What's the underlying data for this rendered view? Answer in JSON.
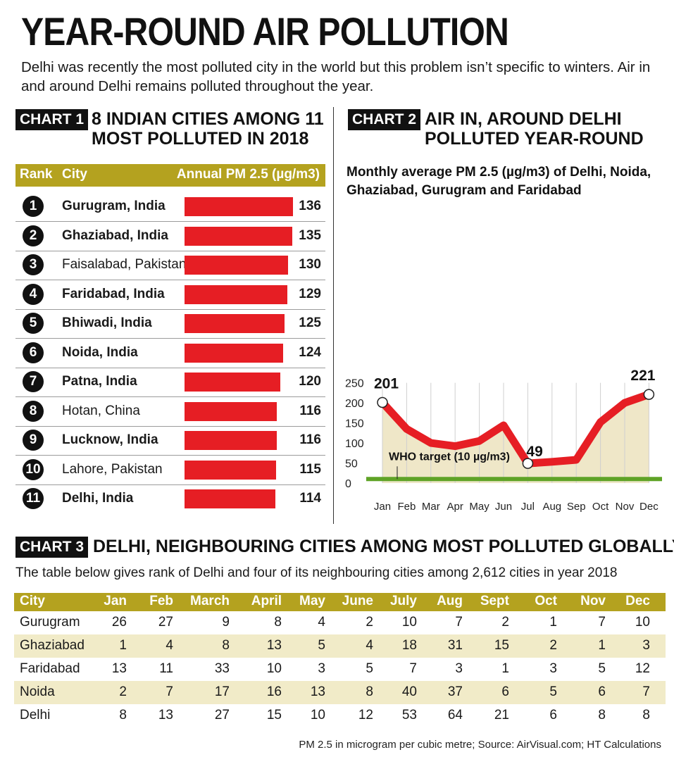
{
  "title": "YEAR-ROUND AIR POLLUTION",
  "intro": "Delhi was recently the most polluted city in the world but this problem isn’t specific to winters. Air in and around Delhi remains polluted throughout the year.",
  "chart1": {
    "badge": "CHART 1",
    "heading_line1": "8 INDIAN CITIES AMONG 11",
    "heading_line2": "MOST POLLUTED IN 2018",
    "header_rank": "Rank",
    "header_city": "City",
    "header_value": "Annual PM 2.5 (µg/m3)",
    "rows": [
      {
        "rank": "1",
        "city": "Gurugram, India",
        "value": "136",
        "indian": true
      },
      {
        "rank": "2",
        "city": "Ghaziabad, India",
        "value": "135",
        "indian": true
      },
      {
        "rank": "3",
        "city": "Faisalabad, Pakistan",
        "value": "130",
        "indian": false
      },
      {
        "rank": "4",
        "city": "Faridabad, India",
        "value": "129",
        "indian": true
      },
      {
        "rank": "5",
        "city": "Bhiwadi, India",
        "value": "125",
        "indian": true
      },
      {
        "rank": "6",
        "city": "Noida, India",
        "value": "124",
        "indian": true
      },
      {
        "rank": "7",
        "city": "Patna, India",
        "value": "120",
        "indian": true
      },
      {
        "rank": "8",
        "city": "Hotan, China",
        "value": "116",
        "indian": false
      },
      {
        "rank": "9",
        "city": "Lucknow, India",
        "value": "116",
        "indian": true
      },
      {
        "rank": "10",
        "city": "Lahore, Pakistan",
        "value": "115",
        "indian": false
      },
      {
        "rank": "11",
        "city": "Delhi, India",
        "value": "114",
        "indian": true
      }
    ]
  },
  "chart2": {
    "badge": "CHART 2",
    "heading_line1": "AIR IN, AROUND DELHI",
    "heading_line2": "POLLUTED YEAR-ROUND",
    "subtitle": "Monthly average PM 2.5 (µg/m3) of Delhi, Noida, Ghaziabad, Gurugram and Faridabad",
    "who_label": "WHO target (10 µg/m3)",
    "who_value": 10,
    "labels": {
      "jan": "201",
      "jul": "49",
      "dec": "221"
    }
  },
  "chart_data": [
    {
      "type": "bar",
      "title": "8 INDIAN CITIES AMONG 11 MOST POLLUTED IN 2018",
      "categories": [
        "Gurugram, India",
        "Ghaziabad, India",
        "Faisalabad, Pakistan",
        "Faridabad, India",
        "Bhiwadi, India",
        "Noida, India",
        "Patna, India",
        "Hotan, China",
        "Lucknow, India",
        "Lahore, Pakistan",
        "Delhi, India"
      ],
      "values": [
        136,
        135,
        130,
        129,
        125,
        124,
        120,
        116,
        116,
        115,
        114
      ],
      "xlabel": "Annual PM 2.5 (µg/m3)",
      "orientation": "horizontal"
    },
    {
      "type": "area",
      "title": "Monthly average PM 2.5 (µg/m3) of Delhi, Noida, Ghaziabad, Gurugram and Faridabad",
      "x": [
        "Jan",
        "Feb",
        "Mar",
        "Apr",
        "May",
        "Jun",
        "Jul",
        "Aug",
        "Sep",
        "Oct",
        "Nov",
        "Dec"
      ],
      "values": [
        201,
        135,
        100,
        92,
        105,
        144,
        49,
        53,
        58,
        152,
        200,
        221
      ],
      "yticks": [
        0,
        50,
        100,
        150,
        200,
        250
      ],
      "ylim": [
        0,
        250
      ],
      "reference_line": {
        "label": "WHO target (10 µg/m3)",
        "value": 10
      }
    },
    {
      "type": "table",
      "title": "DELHI, NEIGHBOURING CITIES AMONG MOST POLLUTED GLOBALLY",
      "columns": [
        "City",
        "Jan",
        "Feb",
        "March",
        "April",
        "May",
        "June",
        "July",
        "Aug",
        "Sept",
        "Oct",
        "Nov",
        "Dec"
      ],
      "rows": [
        [
          "Gurugram",
          "26",
          "27",
          "9",
          "8",
          "4",
          "2",
          "10",
          "7",
          "2",
          "1",
          "7",
          "10"
        ],
        [
          "Ghaziabad",
          "1",
          "4",
          "8",
          "13",
          "5",
          "4",
          "18",
          "31",
          "15",
          "2",
          "1",
          "3"
        ],
        [
          "Faridabad",
          "13",
          "11",
          "33",
          "10",
          "3",
          "5",
          "7",
          "3",
          "1",
          "3",
          "5",
          "12"
        ],
        [
          "Noida",
          "2",
          "7",
          "17",
          "16",
          "13",
          "8",
          "40",
          "37",
          "6",
          "5",
          "6",
          "7"
        ],
        [
          "Delhi",
          "8",
          "13",
          "27",
          "15",
          "10",
          "12",
          "53",
          "64",
          "21",
          "6",
          "8",
          "8"
        ]
      ]
    }
  ],
  "chart3": {
    "badge": "CHART 3",
    "heading": "DELHI, NEIGHBOURING CITIES AMONG MOST POLLUTED GLOBALLY",
    "subtitle": "The table below gives rank of Delhi and four of its neighbouring cities among 2,612 cities in year 2018"
  },
  "source": "PM 2.5 in microgram per cubic metre; Source: AirVisual.com; HT Calculations",
  "colors": {
    "bar": "#e61e24",
    "line": "#e61e24",
    "area": "#efe7c8",
    "who": "#5fa327",
    "header": "#b4a21f",
    "shade": "#f1ebc8"
  }
}
